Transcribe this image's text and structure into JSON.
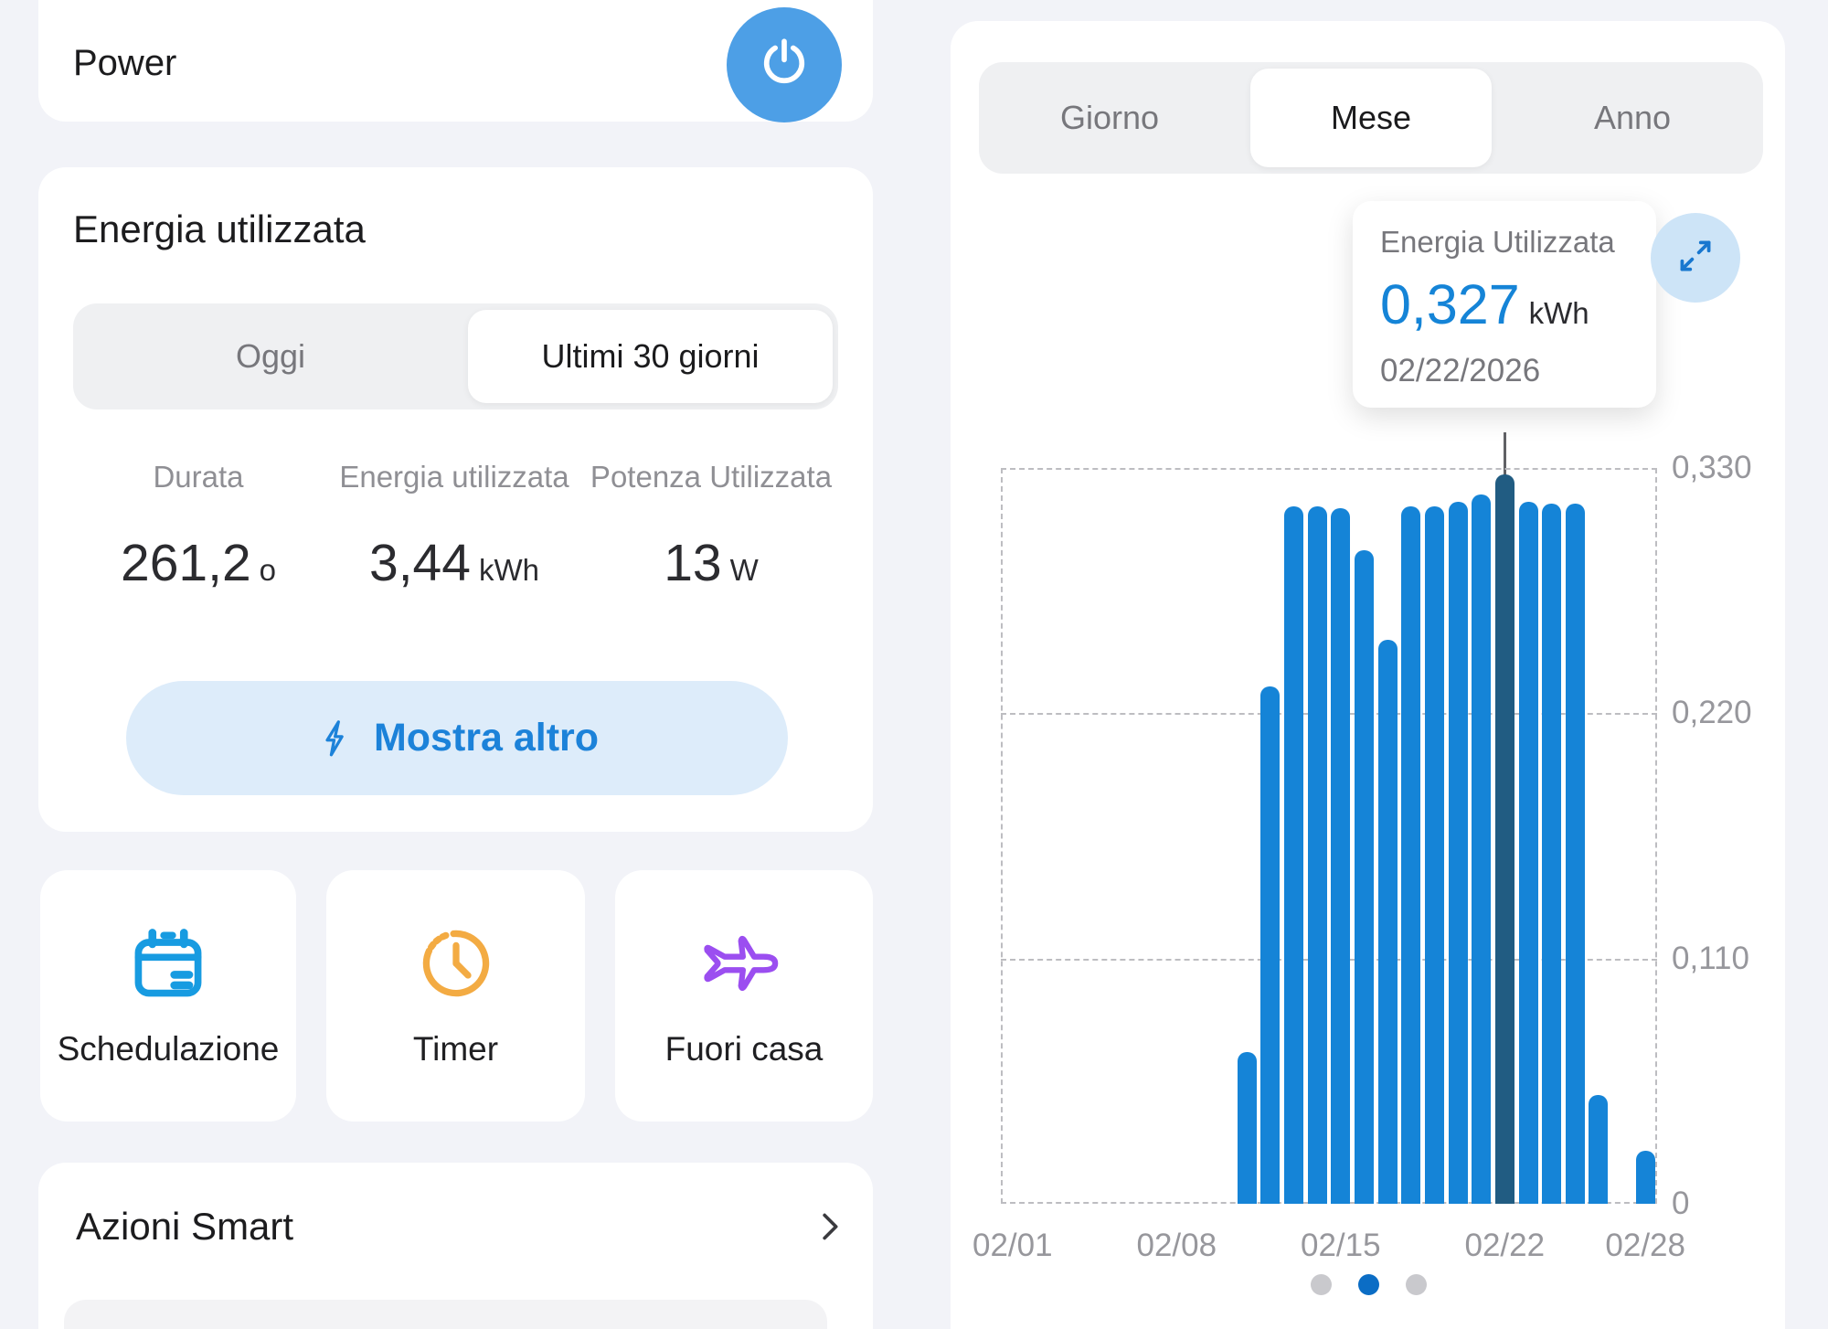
{
  "left_panel": {
    "power_card": {
      "title": "Power"
    },
    "energy_card": {
      "title": "Energia utilizzata",
      "tabs": [
        {
          "label": "Oggi",
          "selected": false
        },
        {
          "label": "Ultimi 30 giorni",
          "selected": true
        }
      ],
      "stats": [
        {
          "label": "Durata",
          "value": "261,2",
          "unit": "o"
        },
        {
          "label": "Energia utilizzata",
          "value": "3,44",
          "unit": "kWh"
        },
        {
          "label": "Potenza Utilizzata",
          "value": "13",
          "unit": "W"
        }
      ],
      "show_more_label": "Mostra altro"
    },
    "quick_actions": [
      {
        "label": "Schedulazione",
        "icon": "calendar-icon",
        "icon_color": "#179be1"
      },
      {
        "label": "Timer",
        "icon": "clock-icon",
        "icon_color": "#f3ab43"
      },
      {
        "label": "Fuori casa",
        "icon": "airplane-icon",
        "icon_color": "#9b4ef0"
      }
    ],
    "smart_actions_card": {
      "title": "Azioni Smart"
    }
  },
  "chart_panel": {
    "tabs": [
      {
        "label": "Giorno",
        "selected": false
      },
      {
        "label": "Mese",
        "selected": true
      },
      {
        "label": "Anno",
        "selected": false
      }
    ],
    "tooltip": {
      "label": "Energia Utilizzata",
      "value": "0,327",
      "unit": "kWh",
      "date": "02/22/2026"
    },
    "pagination_dots": {
      "count": 3,
      "active_index": 1
    }
  },
  "chart_data": {
    "type": "bar",
    "title": "Energia Utilizzata - Mese",
    "unit": "kWh",
    "month": "02/2026",
    "days": 28,
    "values": [
      0,
      0,
      0,
      0,
      0,
      0,
      0,
      0,
      0,
      0,
      0.068,
      0.232,
      0.313,
      0.313,
      0.312,
      0.293,
      0.253,
      0.313,
      0.313,
      0.315,
      0.318,
      0.327,
      0.315,
      0.314,
      0.314,
      0.049,
      0,
      0.024
    ],
    "selected_day": 22,
    "selected_value_label": "0,327",
    "x_tick_days": [
      1,
      8,
      15,
      22,
      28
    ],
    "x_tick_labels": [
      "02/01",
      "02/08",
      "02/15",
      "02/22",
      "02/28"
    ],
    "y_ticks": [
      {
        "label": "0",
        "value": 0
      },
      {
        "label": "0,110",
        "value": 0.11
      },
      {
        "label": "0,220",
        "value": 0.22
      },
      {
        "label": "0,330",
        "value": 0.33
      }
    ],
    "ylim": [
      0,
      0.33
    ],
    "grid": true,
    "bar_color": "#1584d7",
    "selected_bar_color": "#215c82",
    "accent_color": "#1c82d9",
    "background_color": "#f2f3f8"
  }
}
